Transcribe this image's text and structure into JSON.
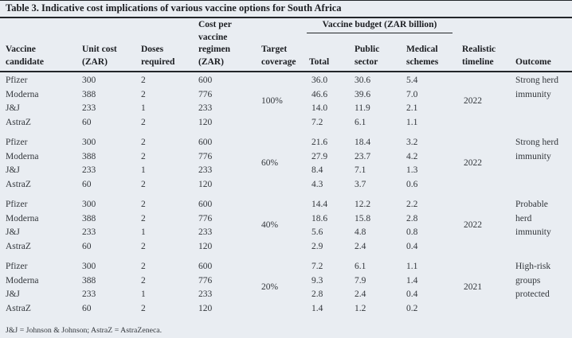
{
  "colors": {
    "background": "#e9edf2",
    "rule": "#23262a",
    "heading_text": "#1b1d21",
    "body_text": "#33373c"
  },
  "table": {
    "title": "Table 3. Indicative cost implications of various vaccine options for South Africa",
    "budget_header": "Vaccine budget (ZAR billion)",
    "columns": [
      "Vaccine\ncandidate",
      "Unit cost\n(ZAR)",
      "Doses\nrequired",
      "Cost per\nvaccine\nregimen\n(ZAR)",
      "Target\ncoverage",
      "Total",
      "Public\nsector",
      "Medical\nschemes",
      "Realistic\ntimeline",
      "Outcome"
    ],
    "groups": [
      {
        "coverage": "100%",
        "timeline": "2022",
        "outcome": "Strong herd\nimmunity",
        "rows": [
          {
            "candidate": "Pfizer",
            "unit_cost": "300",
            "doses": "2",
            "regimen_cost": "600",
            "total": "36.0",
            "public_sector": "30.6",
            "medical_schemes": "5.4"
          },
          {
            "candidate": "Moderna",
            "unit_cost": "388",
            "doses": "2",
            "regimen_cost": "776",
            "total": "46.6",
            "public_sector": "39.6",
            "medical_schemes": "7.0"
          },
          {
            "candidate": "J&J",
            "unit_cost": "233",
            "doses": "1",
            "regimen_cost": "233",
            "total": "14.0",
            "public_sector": "11.9",
            "medical_schemes": "2.1"
          },
          {
            "candidate": "AstraZ",
            "unit_cost": "60",
            "doses": "2",
            "regimen_cost": "120",
            "total": "7.2",
            "public_sector": "6.1",
            "medical_schemes": "1.1"
          }
        ]
      },
      {
        "coverage": "60%",
        "timeline": "2022",
        "outcome": "Strong herd\nimmunity",
        "rows": [
          {
            "candidate": "Pfizer",
            "unit_cost": "300",
            "doses": "2",
            "regimen_cost": "600",
            "total": "21.6",
            "public_sector": "18.4",
            "medical_schemes": "3.2"
          },
          {
            "candidate": "Moderna",
            "unit_cost": "388",
            "doses": "2",
            "regimen_cost": "776",
            "total": "27.9",
            "public_sector": "23.7",
            "medical_schemes": "4.2"
          },
          {
            "candidate": "J&J",
            "unit_cost": "233",
            "doses": "1",
            "regimen_cost": "233",
            "total": "8.4",
            "public_sector": "7.1",
            "medical_schemes": "1.3"
          },
          {
            "candidate": "AstraZ",
            "unit_cost": "60",
            "doses": "2",
            "regimen_cost": "120",
            "total": "4.3",
            "public_sector": "3.7",
            "medical_schemes": "0.6"
          }
        ]
      },
      {
        "coverage": "40%",
        "timeline": "2022",
        "outcome": "Probable\nherd\nimmunity",
        "rows": [
          {
            "candidate": "Pfizer",
            "unit_cost": "300",
            "doses": "2",
            "regimen_cost": "600",
            "total": "14.4",
            "public_sector": "12.2",
            "medical_schemes": "2.2"
          },
          {
            "candidate": "Moderna",
            "unit_cost": "388",
            "doses": "2",
            "regimen_cost": "776",
            "total": "18.6",
            "public_sector": "15.8",
            "medical_schemes": "2.8"
          },
          {
            "candidate": "J&J",
            "unit_cost": "233",
            "doses": "1",
            "regimen_cost": "233",
            "total": "5.6",
            "public_sector": "4.8",
            "medical_schemes": "0.8"
          },
          {
            "candidate": "AstraZ",
            "unit_cost": "60",
            "doses": "2",
            "regimen_cost": "120",
            "total": "2.9",
            "public_sector": "2.4",
            "medical_schemes": "0.4"
          }
        ]
      },
      {
        "coverage": "20%",
        "timeline": "2021",
        "outcome": "High-risk\ngroups\nprotected",
        "rows": [
          {
            "candidate": "Pfizer",
            "unit_cost": "300",
            "doses": "2",
            "regimen_cost": "600",
            "total": "7.2",
            "public_sector": "6.1",
            "medical_schemes": "1.1"
          },
          {
            "candidate": "Moderna",
            "unit_cost": "388",
            "doses": "2",
            "regimen_cost": "776",
            "total": "9.3",
            "public_sector": "7.9",
            "medical_schemes": "1.4"
          },
          {
            "candidate": "J&J",
            "unit_cost": "233",
            "doses": "1",
            "regimen_cost": "233",
            "total": "2.8",
            "public_sector": "2.4",
            "medical_schemes": "0.4"
          },
          {
            "candidate": "AstraZ",
            "unit_cost": "60",
            "doses": "2",
            "regimen_cost": "120",
            "total": "1.4",
            "public_sector": "1.2",
            "medical_schemes": "0.2"
          }
        ]
      }
    ],
    "footnote": "J&J = Johnson & Johnson; AstraZ = AstraZeneca."
  }
}
